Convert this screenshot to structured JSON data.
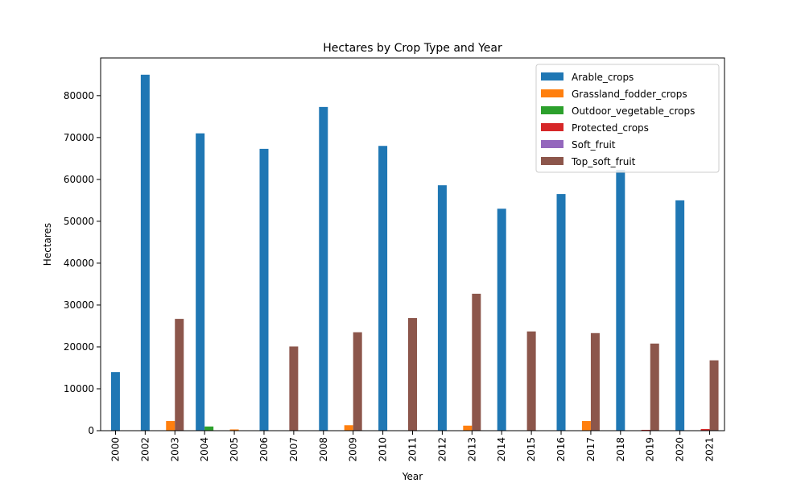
{
  "chart_data": {
    "type": "bar",
    "title": "Hectares by Crop Type and Year",
    "xlabel": "Year",
    "ylabel": "Hectares",
    "categories": [
      "2000",
      "2002",
      "2003",
      "2004",
      "2005",
      "2006",
      "2007",
      "2008",
      "2009",
      "2010",
      "2011",
      "2012",
      "2013",
      "2014",
      "2015",
      "2016",
      "2017",
      "2018",
      "2019",
      "2020",
      "2021"
    ],
    "ylim": [
      0,
      89000
    ],
    "yticks": [
      0,
      10000,
      20000,
      30000,
      40000,
      50000,
      60000,
      70000,
      80000
    ],
    "grid": false,
    "legend_position": "top-right",
    "series": [
      {
        "name": "Arable_crops",
        "color": "#1f77b4",
        "values": [
          14000,
          85000,
          null,
          71000,
          null,
          67300,
          null,
          77300,
          null,
          68000,
          null,
          58600,
          null,
          53000,
          null,
          56500,
          null,
          62300,
          null,
          55000,
          null
        ]
      },
      {
        "name": "Grassland_fodder_crops",
        "color": "#ff7f0e",
        "values": [
          null,
          null,
          2300,
          null,
          300,
          null,
          null,
          null,
          1300,
          null,
          null,
          null,
          1200,
          null,
          null,
          null,
          2300,
          null,
          null,
          null,
          null
        ]
      },
      {
        "name": "Outdoor_vegetable_crops",
        "color": "#2ca02c",
        "values": [
          null,
          null,
          null,
          1000,
          null,
          null,
          null,
          null,
          null,
          null,
          null,
          null,
          null,
          null,
          null,
          null,
          null,
          null,
          null,
          null,
          null
        ]
      },
      {
        "name": "Protected_crops",
        "color": "#d62728",
        "values": [
          null,
          null,
          null,
          null,
          null,
          null,
          null,
          null,
          null,
          null,
          null,
          null,
          null,
          null,
          null,
          null,
          null,
          null,
          200,
          null,
          400
        ]
      },
      {
        "name": "Soft_fruit",
        "color": "#9467bd",
        "values": [
          null,
          null,
          null,
          null,
          null,
          null,
          null,
          null,
          null,
          null,
          null,
          null,
          null,
          null,
          null,
          null,
          null,
          null,
          null,
          null,
          null
        ]
      },
      {
        "name": "Top_soft_fruit",
        "color": "#8c564b",
        "values": [
          null,
          null,
          26700,
          null,
          null,
          null,
          20100,
          null,
          23500,
          null,
          26900,
          null,
          32700,
          null,
          23700,
          null,
          23300,
          null,
          20800,
          null,
          16800
        ]
      }
    ]
  }
}
